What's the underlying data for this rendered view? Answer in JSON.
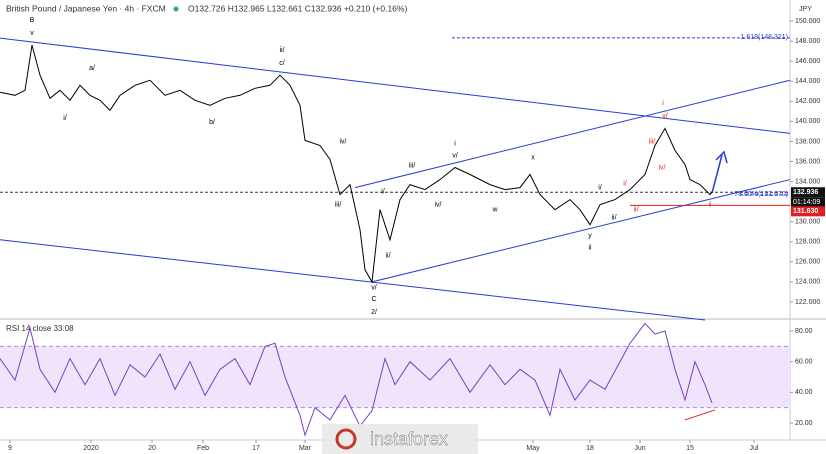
{
  "chart_data": [
    {
      "type": "line",
      "title": "British Pound / Japanese Yen · 4h · FXCM",
      "subtitle": "O132.726 H132.965 L132.661 C132.936 +0.210 (+0.16%)",
      "currency": "JPY",
      "x": [
        0,
        3,
        5,
        6.4,
        8,
        10,
        12,
        14,
        16,
        18,
        20,
        22,
        24,
        27,
        30,
        33,
        36,
        39,
        42,
        45,
        48,
        51,
        54,
        56,
        58,
        60,
        61,
        64,
        66,
        68,
        70,
        72,
        73,
        74.4,
        76,
        78,
        80,
        82,
        85,
        88,
        91,
        94,
        98,
        101,
        104,
        106,
        108,
        111,
        114,
        116,
        118,
        120,
        123,
        126,
        129,
        131,
        133,
        135,
        137,
        138,
        140,
        142,
        142.4
      ],
      "series": [
        {
          "name": "GBPJPY",
          "color": "#000000",
          "values": [
            142.9,
            142.6,
            143.1,
            147.6,
            144.6,
            142.3,
            143.1,
            142.1,
            143.6,
            142.6,
            142.1,
            141.1,
            142.6,
            143.6,
            144.1,
            142.6,
            143.1,
            142.1,
            141.6,
            142.3,
            142.6,
            143.3,
            143.6,
            144.6,
            143.6,
            141.6,
            138.1,
            137.6,
            136.2,
            132.7,
            133.7,
            129.2,
            125.2,
            124.0,
            131.2,
            128.2,
            132.2,
            133.7,
            133.2,
            134.2,
            135.4,
            134.7,
            133.7,
            133.2,
            133.4,
            134.7,
            132.7,
            131.2,
            132.2,
            131.2,
            129.7,
            131.7,
            132.2,
            133.2,
            134.7,
            137.6,
            139.3,
            137.1,
            135.7,
            134.2,
            133.7,
            132.7,
            132.936
          ]
        }
      ],
      "xlim": [
        0,
        158
      ],
      "ylim": [
        120.4,
        152.1
      ],
      "yticks": [
        {
          "value": 122,
          "label": "122.000"
        },
        {
          "value": 124,
          "label": "124.000"
        },
        {
          "value": 126,
          "label": "126.000"
        },
        {
          "value": 128,
          "label": "128.000"
        },
        {
          "value": 130,
          "label": "130.000"
        },
        {
          "value": 134,
          "label": "134.000"
        },
        {
          "value": 136,
          "label": "136.000"
        },
        {
          "value": 138,
          "label": "138.000"
        },
        {
          "value": 140,
          "label": "140.000"
        },
        {
          "value": 142,
          "label": "142.000"
        },
        {
          "value": 144,
          "label": "144.000"
        },
        {
          "value": 146,
          "label": "146.000"
        },
        {
          "value": 148,
          "label": "148.000"
        },
        {
          "value": 150,
          "label": "150.000"
        }
      ],
      "last_price": {
        "value": 132.936,
        "label": "132.936",
        "timer": "01:14:09"
      },
      "level": {
        "value": 131.63,
        "label": "131.630",
        "color": "#e02020"
      },
      "fib_labels": [
        {
          "value": 148.321,
          "label": "1.618(148.321)"
        },
        {
          "value": 132.67,
          "label": "78.60%(132.670)"
        }
      ],
      "lines": [
        {
          "x": [
            0,
            158
          ],
          "y": [
            148.3,
            138.8
          ],
          "color": "#2a3bd6",
          "dash": false
        },
        {
          "x": [
            0,
            141
          ],
          "y": [
            128.2,
            120.2
          ],
          "color": "#2a3bd6",
          "dash": false
        },
        {
          "x": [
            71,
            158
          ],
          "y": [
            133.4,
            144.1
          ],
          "color": "#2a3bd6",
          "dash": false
        },
        {
          "x": [
            74.4,
            158
          ],
          "y": [
            124.0,
            134.2
          ],
          "color": "#2a3bd6",
          "dash": false
        },
        {
          "x": [
            126,
            158
          ],
          "y": [
            131.63,
            131.63
          ],
          "color": "#e02020",
          "dash": false
        },
        {
          "x": [
            0,
            158
          ],
          "y": [
            132.936,
            132.936
          ],
          "color": "#333333",
          "dash": true
        },
        {
          "x": [
            90.4,
            158
          ],
          "y": [
            148.321,
            148.321
          ],
          "color": "#2a3bd6",
          "dash": true
        },
        {
          "x": [
            148,
            158
          ],
          "y": [
            132.67,
            132.67
          ],
          "color": "#2a3bd6",
          "dash": true
        }
      ],
      "annotations": [
        {
          "text": "B",
          "x": 6.4,
          "y": 150.1,
          "color": "#000000"
        },
        {
          "text": "v",
          "x": 6.4,
          "y": 148.8,
          "color": "#000000"
        },
        {
          "text": "a/",
          "x": 18.4,
          "y": 145.3,
          "color": "#000000"
        },
        {
          "text": "i/",
          "x": 13,
          "y": 140.3,
          "color": "#000000"
        },
        {
          "text": "b/",
          "x": 42.4,
          "y": 139.9,
          "color": "#000000"
        },
        {
          "text": "ii/",
          "x": 56.4,
          "y": 147.1,
          "color": "#000000"
        },
        {
          "text": "c/",
          "x": 56.4,
          "y": 145.8,
          "color": "#000000"
        },
        {
          "text": "iv/",
          "x": 68.6,
          "y": 138.0,
          "color": "#000000"
        },
        {
          "text": "iii/",
          "x": 67.6,
          "y": 131.7,
          "color": "#000000"
        },
        {
          "text": "i/",
          "x": 76.6,
          "y": 133.0,
          "color": "#000000"
        },
        {
          "text": "iii/",
          "x": 82.4,
          "y": 135.6,
          "color": "#000000"
        },
        {
          "text": "ii/",
          "x": 77.6,
          "y": 126.6,
          "color": "#000000"
        },
        {
          "text": "iv/",
          "x": 87.6,
          "y": 131.7,
          "color": "#000000"
        },
        {
          "text": "i",
          "x": 91,
          "y": 137.8,
          "color": "#000000"
        },
        {
          "text": "v/",
          "x": 91,
          "y": 136.6,
          "color": "#000000"
        },
        {
          "text": "w",
          "x": 99,
          "y": 131.2,
          "color": "#000000"
        },
        {
          "text": "x",
          "x": 106.6,
          "y": 136.4,
          "color": "#000000"
        },
        {
          "text": "y",
          "x": 118,
          "y": 128.6,
          "color": "#000000"
        },
        {
          "text": "ii",
          "x": 118,
          "y": 127.4,
          "color": "#000000"
        },
        {
          "text": "v/",
          "x": 74.8,
          "y": 123.4,
          "color": "#000000"
        },
        {
          "text": "C",
          "x": 74.8,
          "y": 122.3,
          "color": "#000000"
        },
        {
          "text": "2/",
          "x": 74.8,
          "y": 121.0,
          "color": "#000000"
        },
        {
          "text": "i/",
          "x": 120,
          "y": 133.4,
          "color": "#000000"
        },
        {
          "text": "ii/",
          "x": 122.8,
          "y": 130.4,
          "color": "#000000"
        },
        {
          "text": "i/",
          "x": 125,
          "y": 133.8,
          "color": "#e02020"
        },
        {
          "text": "ii/",
          "x": 127.2,
          "y": 131.2,
          "color": "#e02020"
        },
        {
          "text": "iii/",
          "x": 130.4,
          "y": 138.0,
          "color": "#e02020"
        },
        {
          "text": "iv/",
          "x": 132.4,
          "y": 135.4,
          "color": "#e02020"
        },
        {
          "text": "v/",
          "x": 133,
          "y": 140.5,
          "color": "#e02020"
        },
        {
          "text": "i",
          "x": 132.6,
          "y": 141.8,
          "color": "#e02020"
        },
        {
          "text": "ii",
          "x": 142,
          "y": 131.7,
          "color": "#e02020"
        }
      ]
    },
    {
      "type": "line",
      "title": "RSI 14 close 33.08",
      "x": [
        0,
        3,
        6,
        8,
        11,
        14,
        17,
        20,
        23,
        26,
        29,
        32,
        35,
        38,
        41,
        44,
        47,
        50,
        53,
        55,
        57,
        60,
        61,
        63,
        66,
        69,
        72,
        74.4,
        77,
        79,
        82,
        86,
        90,
        94,
        98,
        101,
        104,
        107,
        110,
        112,
        115,
        118,
        121,
        124,
        126,
        129,
        131,
        133,
        135,
        137,
        139,
        141,
        142.4
      ],
      "series": [
        {
          "name": "RSI",
          "color": "#7b3fbf",
          "values": [
            62,
            48,
            82,
            55,
            40,
            62,
            45,
            62,
            38,
            58,
            50,
            65,
            42,
            60,
            38,
            55,
            62,
            45,
            70,
            72,
            50,
            25,
            12,
            30,
            22,
            38,
            18,
            28,
            62,
            45,
            60,
            48,
            62,
            40,
            58,
            45,
            55,
            48,
            25,
            55,
            35,
            48,
            42,
            60,
            72,
            85,
            78,
            80,
            55,
            35,
            60,
            45,
            33.08
          ]
        }
      ],
      "xlim": [
        0,
        158
      ],
      "ylim": [
        8.9,
        87.2
      ],
      "yticks": [
        {
          "value": 20,
          "label": "20.00"
        },
        {
          "value": 40,
          "label": "40.00"
        },
        {
          "value": 60,
          "label": "60.00"
        },
        {
          "value": 80,
          "label": "80.00"
        }
      ],
      "band": [
        30,
        70
      ],
      "band_color": "#efe4fb",
      "lines": [
        {
          "x": [
            137,
            143
          ],
          "y": [
            22,
            28.5
          ],
          "color": "#e02020",
          "dash": false
        }
      ],
      "xticks": [
        {
          "value": 2,
          "label": "9"
        },
        {
          "value": 18.2,
          "label": "2020"
        },
        {
          "value": 30.4,
          "label": "20"
        },
        {
          "value": 40.6,
          "label": "Feb"
        },
        {
          "value": 51.2,
          "label": "17"
        },
        {
          "value": 61,
          "label": "Mar"
        },
        {
          "value": 106.6,
          "label": "May"
        },
        {
          "value": 118,
          "label": "18"
        },
        {
          "value": 128,
          "label": "Jun"
        },
        {
          "value": 138,
          "label": "15"
        },
        {
          "value": 150.8,
          "label": "Jul"
        }
      ]
    }
  ],
  "watermark": "instaforex"
}
